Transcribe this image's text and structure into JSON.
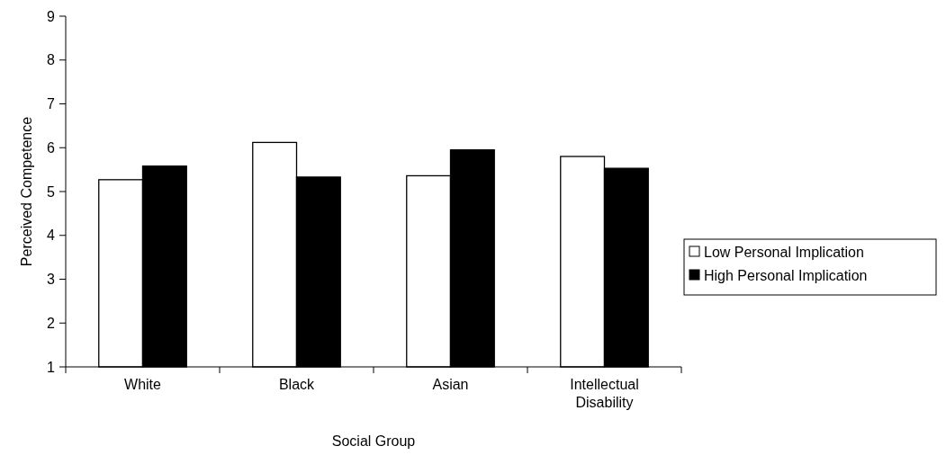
{
  "chart_data": {
    "type": "bar",
    "xlabel": "Social Group",
    "ylabel": "Perceived Competence",
    "categories": [
      "White",
      "Black",
      "Asian",
      "Intellectual Disability"
    ],
    "series": [
      {
        "name": "Low Personal Implication",
        "color": "#ffffff",
        "values": [
          5.27,
          6.12,
          5.36,
          5.8
        ]
      },
      {
        "name": "High Personal Implication",
        "color": "#000000",
        "values": [
          5.58,
          5.33,
          5.95,
          5.53
        ]
      }
    ],
    "ylim": [
      1,
      9
    ],
    "yticks": [
      1,
      2,
      3,
      4,
      5,
      6,
      7,
      8,
      9
    ],
    "grid": false,
    "legend": "right"
  }
}
